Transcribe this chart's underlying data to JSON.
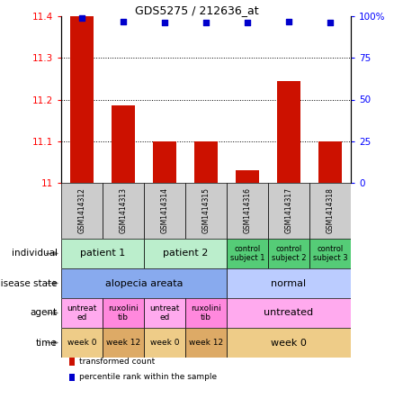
{
  "title": "GDS5275 / 212636_at",
  "samples": [
    "GSM1414312",
    "GSM1414313",
    "GSM1414314",
    "GSM1414315",
    "GSM1414316",
    "GSM1414317",
    "GSM1414318"
  ],
  "bar_values": [
    11.4,
    11.185,
    11.1,
    11.1,
    11.03,
    11.245,
    11.1
  ],
  "percentile_values": [
    99,
    97,
    96,
    96,
    96,
    97,
    96
  ],
  "bar_color": "#cc1100",
  "dot_color": "#0000cc",
  "ylim_left": [
    11.0,
    11.4
  ],
  "ylim_right": [
    0,
    100
  ],
  "yticks_left": [
    11.0,
    11.1,
    11.2,
    11.3,
    11.4
  ],
  "ytick_labels_left": [
    "11",
    "11.1",
    "11.2",
    "11.3",
    "11.4"
  ],
  "yticks_right": [
    0,
    25,
    50,
    75,
    100
  ],
  "ytick_labels_right": [
    "0",
    "25",
    "50",
    "75",
    "100%"
  ],
  "grid_ticks": [
    11.1,
    11.2,
    11.3
  ],
  "annotation_rows": [
    {
      "label": "individual",
      "cells": [
        {
          "text": "patient 1",
          "span": [
            0,
            2
          ],
          "color": "#bbeecc",
          "fontsize": 8
        },
        {
          "text": "patient 2",
          "span": [
            2,
            4
          ],
          "color": "#bbeecc",
          "fontsize": 8
        },
        {
          "text": "control\nsubject 1",
          "span": [
            4,
            5
          ],
          "color": "#55cc77",
          "fontsize": 6
        },
        {
          "text": "control\nsubject 2",
          "span": [
            5,
            6
          ],
          "color": "#55cc77",
          "fontsize": 6
        },
        {
          "text": "control\nsubject 3",
          "span": [
            6,
            7
          ],
          "color": "#55cc77",
          "fontsize": 6
        }
      ]
    },
    {
      "label": "disease state",
      "cells": [
        {
          "text": "alopecia areata",
          "span": [
            0,
            4
          ],
          "color": "#88aaee",
          "fontsize": 8
        },
        {
          "text": "normal",
          "span": [
            4,
            7
          ],
          "color": "#bbccff",
          "fontsize": 8
        }
      ]
    },
    {
      "label": "agent",
      "cells": [
        {
          "text": "untreat\ned",
          "span": [
            0,
            1
          ],
          "color": "#ffaaee",
          "fontsize": 6.5
        },
        {
          "text": "ruxolini\ntib",
          "span": [
            1,
            2
          ],
          "color": "#ff88dd",
          "fontsize": 6.5
        },
        {
          "text": "untreat\ned",
          "span": [
            2,
            3
          ],
          "color": "#ffaaee",
          "fontsize": 6.5
        },
        {
          "text": "ruxolini\ntib",
          "span": [
            3,
            4
          ],
          "color": "#ff88dd",
          "fontsize": 6.5
        },
        {
          "text": "untreated",
          "span": [
            4,
            7
          ],
          "color": "#ffaaee",
          "fontsize": 8
        }
      ]
    },
    {
      "label": "time",
      "cells": [
        {
          "text": "week 0",
          "span": [
            0,
            1
          ],
          "color": "#eecc88",
          "fontsize": 6.5
        },
        {
          "text": "week 12",
          "span": [
            1,
            2
          ],
          "color": "#ddaa66",
          "fontsize": 6.5
        },
        {
          "text": "week 0",
          "span": [
            2,
            3
          ],
          "color": "#eecc88",
          "fontsize": 6.5
        },
        {
          "text": "week 12",
          "span": [
            3,
            4
          ],
          "color": "#ddaa66",
          "fontsize": 6.5
        },
        {
          "text": "week 0",
          "span": [
            4,
            7
          ],
          "color": "#eecc88",
          "fontsize": 8
        }
      ]
    }
  ],
  "legend_items": [
    {
      "color": "#cc1100",
      "label": "transformed count"
    },
    {
      "color": "#0000cc",
      "label": "percentile rank within the sample"
    }
  ],
  "sample_box_color": "#cccccc",
  "row_label_color": "#333333"
}
